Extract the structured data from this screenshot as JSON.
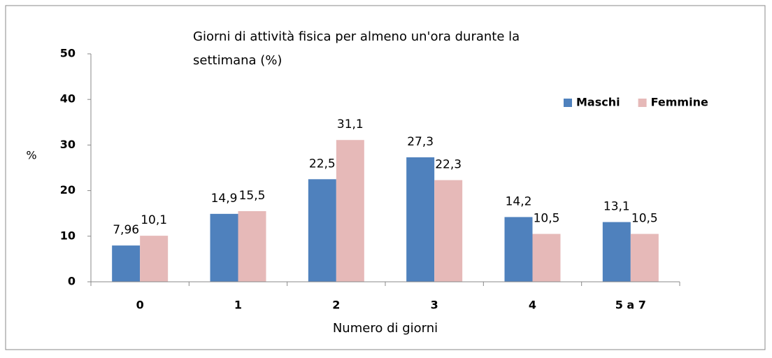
{
  "chart_data": {
    "type": "bar",
    "title": "Giorni di attività fisica per almeno un'ora durante la settimana (%)",
    "x_label": "Numero di giorni",
    "y_label": "%",
    "categories": [
      "0",
      "1",
      "2",
      "3",
      "4",
      "5 a 7"
    ],
    "series": [
      {
        "name": "Maschi",
        "color": "#4f81bd",
        "values": [
          7.96,
          14.9,
          22.5,
          27.3,
          14.2,
          13.1
        ],
        "value_labels": [
          "7,96",
          "14,9",
          "22,5",
          "27,3",
          "14,2",
          "13,1"
        ]
      },
      {
        "name": "Femmine",
        "color": "#e6b9b8",
        "values": [
          10.1,
          15.5,
          31.1,
          22.3,
          10.5,
          10.5
        ],
        "value_labels": [
          "10,1",
          "15,5",
          "31,1",
          "22,3",
          "10,5",
          "10,5"
        ]
      }
    ],
    "ylim": [
      0,
      50
    ],
    "yticks": [
      0,
      10,
      20,
      30,
      40,
      50
    ],
    "grid": false,
    "legend": "upper right"
  }
}
